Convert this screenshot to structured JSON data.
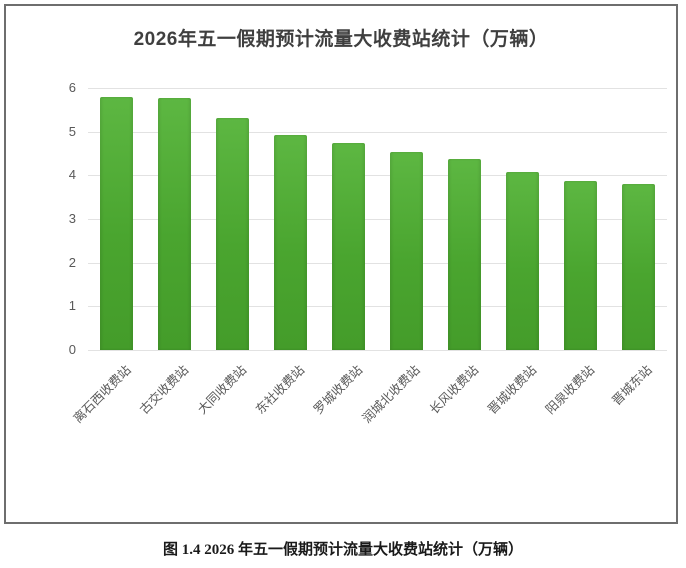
{
  "figure": {
    "caption": "图 1.4  2026 年五一假期预计流量大收费站统计（万辆）"
  },
  "colors": {
    "bar_green": "#4aa52f",
    "gridline": "#e2e2e2",
    "axis_text": "#595959",
    "title_text": "#3f3f3f",
    "frame_border": "#6e6e6e"
  },
  "chart_data": {
    "type": "bar",
    "title": "2026年五一假期预计流量大收费站统计（万辆）",
    "categories": [
      "离石西收费站",
      "古交收费站",
      "大同收费站",
      "东社收费站",
      "罗城收费站",
      "润城北收费站",
      "长风收费站",
      "晋城收费站",
      "阳泉收费站",
      "晋城东站"
    ],
    "values": [
      5.8,
      5.78,
      5.32,
      4.93,
      4.75,
      4.53,
      4.38,
      4.08,
      3.87,
      3.8
    ],
    "xlabel": "",
    "ylabel": "",
    "ylim": [
      0,
      6
    ],
    "yticks": [
      0,
      1,
      2,
      3,
      4,
      5,
      6
    ],
    "grid": true,
    "legend": "none",
    "x_tick_rotation_deg": 45
  }
}
